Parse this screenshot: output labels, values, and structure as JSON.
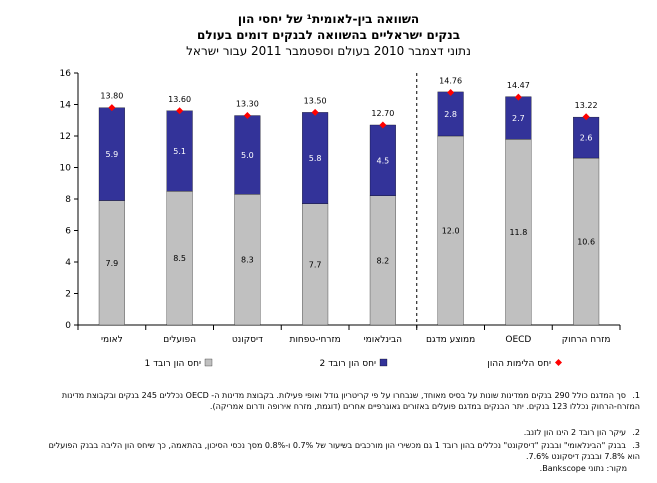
{
  "page": {
    "title_line1": "השוואה בין-לאומית¹ של יחסי הון",
    "title_line2": "בנקים ישראליים בהשוואה לבנקים דומים בעולם",
    "title_line3": "נתוני דצמבר 2010 בעולם וספטמבר 2011 עבור ישראל",
    "notes": [
      {
        "num": "1.",
        "text": "סך המדגם כולל 290 בנקים ממדינות שונות על בסיס מאוחד, שנבחרו על פי קריטריון גודל ואופי פעילות. בקבוצת מדינות ה- OECD נכללים 245 בנקים ובקבוצת מדינות המזרח-הרחוק נכללו 123 בנקים. יתר הבנקים במדגם פועלים באזורים גאוגרפיים אחרים (דוגמת, מזרח אירופה ודרום אמריקה)."
      },
      {
        "num": "2.",
        "text": "עיקר הון רובד 2 הינו הון לזנב."
      },
      {
        "num": "3.",
        "text": "בבנק \"הבינלאומי\" ובבנק \"דיסקונט\" נכללים בהון רובד 1 גם מכשירי הון מורכבים בשיעור של 0.7% ו-0.8% מסך נכסי הסיכון, בהתאמה, כך שיחס הון הליבה בבנק הפועלים הוא 7.8% ובבנק דיסקונט 7.6%."
      }
    ],
    "source": "מקור: נתוני Bankscope."
  },
  "chart_data": {
    "type": "bar",
    "stacked": true,
    "categories": [
      "לאומי",
      "הפועלים",
      "דיסקונט",
      "מזרחי-טפחות",
      "הבינלאומי",
      "ממוצע מדגם",
      "OECD",
      "מזרח הרחוק"
    ],
    "series": [
      {
        "name": "יחס הון רובד 1",
        "color": "#c0c0c0",
        "values": [
          7.9,
          8.5,
          8.3,
          7.7,
          8.2,
          12.0,
          11.8,
          10.6
        ]
      },
      {
        "name": "יחס הון רובד 2",
        "color": "#333399",
        "values": [
          5.9,
          5.1,
          5.0,
          5.8,
          4.5,
          2.8,
          2.7,
          2.6
        ]
      }
    ],
    "total": {
      "name": "יחס הלימות ההון",
      "color": "#ff0000",
      "values": [
        13.8,
        13.6,
        13.3,
        13.5,
        12.7,
        14.76,
        14.47,
        13.22
      ]
    },
    "segment_labels": [
      [
        "7.9",
        "8.5",
        "8.3",
        "7.7",
        "8.2",
        "12.0",
        "11.8",
        "10.6"
      ],
      [
        "5.9",
        "5.1",
        "5.0",
        "5.8",
        "4.5",
        "2.8",
        "2.7",
        "2.6"
      ]
    ],
    "total_labels": [
      "13.80",
      "13.60",
      "13.30",
      "13.50",
      "12.70",
      "14.76",
      "14.47",
      "13.22"
    ],
    "yticks": [
      "0",
      "2",
      "4",
      "6",
      "8",
      "10",
      "12",
      "14",
      "16"
    ],
    "ylim": [
      0,
      16
    ],
    "ystep": 2,
    "grid": false,
    "separator_after_category": 5,
    "legend_placement": "bottom",
    "xlabel": "",
    "ylabel": ""
  }
}
